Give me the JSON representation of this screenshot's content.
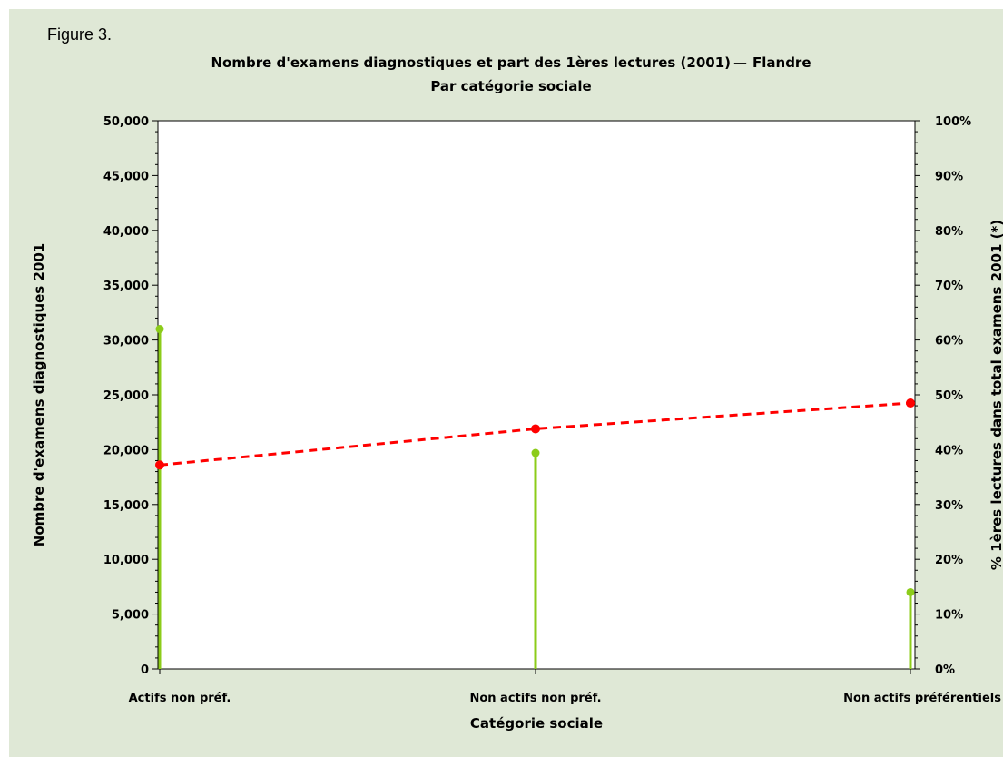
{
  "figure_label": "Figure 3.",
  "chart_data": {
    "type": "line",
    "title": "Nombre d'examens diagnostiques et part des 1ères lectures (2001)",
    "title_suffix": "Flandre",
    "subtitle": "Par catégorie sociale",
    "xlabel": "Catégorie sociale",
    "ylabel": "Nombre d'examens diagnostiques 2001",
    "y2label": "% 1ères lectures dans total examens 2001 (*)",
    "categories": [
      "Actifs non préf.",
      "Non actifs non préf.",
      "Non actifs préférentiels"
    ],
    "ylim": [
      0,
      50000
    ],
    "y_ticks": [
      "0",
      "5,000",
      "10,000",
      "15,000",
      "20,000",
      "25,000",
      "30,000",
      "35,000",
      "40,000",
      "45,000",
      "50,000"
    ],
    "y2lim": [
      0,
      100
    ],
    "y2_ticks": [
      "0%",
      "10%",
      "20%",
      "30%",
      "40%",
      "50%",
      "60%",
      "70%",
      "80%",
      "90%",
      "100%"
    ],
    "grid": false,
    "series": [
      {
        "axis": "left",
        "style": "needle",
        "color": "#8ccc1a",
        "values": [
          31000,
          19700,
          7000
        ]
      },
      {
        "axis": "right",
        "style": "dashed-line",
        "color": "#ff0000",
        "values": [
          37.2,
          43.8,
          48.5
        ]
      }
    ]
  }
}
